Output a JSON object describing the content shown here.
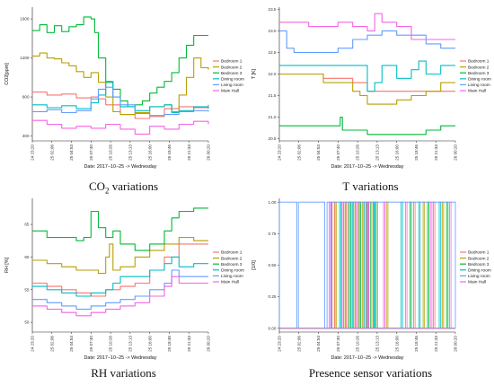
{
  "series_names": [
    "Bedroom 1",
    "Bedroom 2",
    "Bedroom 3",
    "Dining room",
    "Living room",
    "Main Hall"
  ],
  "colors": [
    "#f8766d",
    "#b79f00",
    "#00ba38",
    "#00bfc4",
    "#619cff",
    "#f564e3"
  ],
  "time_ticks": [
    "24 23:20",
    "25 02:06",
    "25 04:53",
    "25 07:40",
    "25 10:26",
    "25 13:13",
    "25 16:00",
    "25 18:46",
    "25 21:33",
    "26 00:20"
  ],
  "captions": {
    "co2_main": "CO",
    "co2_sub": "2",
    "co2_rest": " variations",
    "t": "T variations",
    "rh": "RH variations",
    "pres": "Presence sensor variations"
  },
  "chart_data": [
    {
      "type": "line",
      "title": "",
      "xlabel": "Date: 2017−10−25 -> Wednesday",
      "ylabel": "CO2[ppm]",
      "ylim": [
        350,
        1720
      ],
      "yticks": [
        400,
        800,
        1200,
        1600
      ],
      "series": [
        {
          "name": "Bedroom 1",
          "t": [
            0,
            2,
            4,
            6,
            8,
            9,
            10,
            12,
            14,
            16,
            18,
            20,
            22,
            24
          ],
          "values": [
            850,
            820,
            830,
            790,
            800,
            780,
            720,
            620,
            580,
            600,
            680,
            700,
            690,
            720
          ]
        },
        {
          "name": "Bedroom 2",
          "t": [
            0,
            1,
            2,
            3,
            4,
            5,
            6,
            7,
            8,
            9,
            10,
            11,
            12,
            14,
            16,
            18,
            19,
            20,
            21,
            22,
            23,
            24
          ],
          "values": [
            1220,
            1250,
            1200,
            1190,
            1150,
            1120,
            1060,
            1000,
            1050,
            950,
            800,
            650,
            620,
            640,
            700,
            720,
            650,
            820,
            1000,
            1200,
            1100,
            1080
          ]
        },
        {
          "name": "Bedroom 3",
          "t": [
            0,
            1,
            2,
            3,
            4,
            5,
            6,
            7,
            8,
            8.5,
            9,
            10,
            11,
            12,
            13,
            14,
            15,
            16,
            17,
            18,
            19,
            20,
            21,
            22,
            23,
            24
          ],
          "values": [
            1480,
            1540,
            1460,
            1530,
            1470,
            1520,
            1540,
            1620,
            1600,
            1460,
            1200,
            950,
            880,
            760,
            700,
            720,
            760,
            840,
            900,
            960,
            1050,
            1200,
            1330,
            1430,
            1430,
            1430
          ]
        },
        {
          "name": "Dining room",
          "t": [
            0,
            2,
            4,
            6,
            8,
            9,
            10,
            11,
            12,
            14,
            16,
            18,
            19,
            20,
            22,
            24
          ],
          "values": [
            720,
            690,
            710,
            680,
            740,
            820,
            960,
            800,
            700,
            660,
            700,
            720,
            640,
            660,
            700,
            680
          ]
        },
        {
          "name": "Living room",
          "t": [
            0,
            2,
            4,
            6,
            8,
            9,
            10,
            11,
            12,
            14,
            16,
            18,
            20,
            22,
            24
          ],
          "values": [
            650,
            670,
            640,
            660,
            780,
            880,
            900,
            800,
            720,
            630,
            610,
            620,
            650,
            660,
            650
          ]
        },
        {
          "name": "Main Hall",
          "t": [
            0,
            2,
            4,
            6,
            8,
            10,
            12,
            14,
            16,
            18,
            20,
            22,
            24
          ],
          "values": [
            560,
            520,
            480,
            500,
            480,
            520,
            470,
            420,
            500,
            470,
            520,
            550,
            520
          ]
        }
      ]
    },
    {
      "type": "line",
      "title": "",
      "xlabel": "Date: 2017−10−25 -> Wednesday",
      "ylabel": "T [K]",
      "ylim": [
        20.45,
        23.55
      ],
      "yticks": [
        20.5,
        21.0,
        21.5,
        22.0,
        22.5,
        23.0,
        23.5
      ],
      "series": [
        {
          "name": "Bedroom 1",
          "t": [
            0,
            2,
            4,
            6,
            8,
            10,
            11,
            12,
            14,
            16,
            18,
            20,
            22,
            24
          ],
          "values": [
            22.0,
            22.0,
            22.0,
            21.9,
            21.9,
            21.8,
            21.8,
            21.6,
            21.6,
            21.6,
            21.6,
            21.6,
            21.6,
            21.6
          ]
        },
        {
          "name": "Bedroom 2",
          "t": [
            0,
            2,
            4,
            6,
            8,
            9,
            10,
            11,
            12,
            14,
            16,
            18,
            20,
            22,
            24
          ],
          "values": [
            22.0,
            22.0,
            22.0,
            21.8,
            21.8,
            21.8,
            21.6,
            21.5,
            21.3,
            21.3,
            21.4,
            21.5,
            21.6,
            21.8,
            21.8
          ]
        },
        {
          "name": "Bedroom 3",
          "t": [
            0,
            2,
            4,
            6,
            8,
            8.3,
            8.6,
            9,
            12,
            15,
            18,
            20,
            22,
            24
          ],
          "values": [
            20.8,
            20.8,
            20.8,
            20.8,
            20.8,
            21.0,
            20.7,
            20.7,
            20.6,
            20.6,
            20.6,
            20.7,
            20.8,
            20.8
          ]
        },
        {
          "name": "Dining room",
          "t": [
            0,
            2,
            4,
            6,
            8,
            10,
            12,
            13,
            14,
            16,
            18,
            19,
            20,
            22,
            24
          ],
          "values": [
            22.2,
            22.2,
            22.2,
            22.2,
            22.2,
            22.2,
            21.6,
            21.8,
            22.2,
            21.9,
            22.1,
            22.3,
            22.0,
            22.2,
            22.2
          ]
        },
        {
          "name": "Living room",
          "t": [
            0,
            1,
            2,
            4,
            6,
            8,
            10,
            12,
            14,
            16,
            18,
            20,
            22,
            24
          ],
          "values": [
            23.0,
            22.6,
            22.5,
            22.5,
            22.5,
            22.6,
            22.8,
            22.9,
            23.0,
            22.9,
            22.9,
            22.7,
            22.6,
            22.6
          ]
        },
        {
          "name": "Main Hall",
          "t": [
            0,
            2,
            4,
            6,
            8,
            10,
            12,
            13,
            14,
            16,
            18,
            20,
            22,
            24
          ],
          "values": [
            23.2,
            23.2,
            23.1,
            23.1,
            23.2,
            23.1,
            23.0,
            23.4,
            23.2,
            23.1,
            22.8,
            22.8,
            22.8,
            22.8
          ]
        }
      ]
    },
    {
      "type": "line",
      "title": "",
      "xlabel": "Date: 2017−10−25 -> Wednesday",
      "ylabel": "RH [%]",
      "ylim": [
        48.5,
        69
      ],
      "yticks": [
        50,
        55,
        60,
        65
      ],
      "series": [
        {
          "name": "Bedroom 1",
          "t": [
            0,
            2,
            4,
            6,
            8,
            10,
            12,
            14,
            16,
            18,
            20,
            22,
            24
          ],
          "values": [
            56,
            55.5,
            55,
            54.5,
            54,
            55,
            55.5,
            56,
            58,
            60,
            62,
            62,
            62
          ]
        },
        {
          "name": "Bedroom 2",
          "t": [
            0,
            2,
            4,
            6,
            8,
            9,
            10,
            10.5,
            11,
            12,
            14,
            16,
            18,
            20,
            22,
            24
          ],
          "values": [
            59.5,
            59,
            58.5,
            58,
            58,
            57.5,
            60,
            62,
            58,
            58.5,
            60,
            61,
            62,
            63,
            62.5,
            62.5
          ]
        },
        {
          "name": "Bedroom 3",
          "t": [
            0,
            2,
            4,
            6,
            7,
            8,
            9,
            10,
            11,
            12,
            14,
            16,
            18,
            19,
            20,
            22,
            24
          ],
          "values": [
            64,
            63,
            63,
            62.5,
            63,
            67,
            64.5,
            63,
            64,
            62,
            61,
            62,
            64,
            66,
            67,
            67.5,
            67.5
          ]
        },
        {
          "name": "Dining room",
          "t": [
            0,
            2,
            4,
            6,
            8,
            10,
            11,
            12,
            14,
            16,
            18,
            19,
            20,
            22,
            24
          ],
          "values": [
            55.5,
            55,
            54.5,
            54,
            54.5,
            55,
            56,
            57,
            57,
            58,
            59,
            60,
            58.5,
            59,
            59
          ]
        },
        {
          "name": "Living room",
          "t": [
            0,
            2,
            4,
            6,
            8,
            10,
            12,
            14,
            16,
            18,
            19,
            20,
            22,
            24
          ],
          "values": [
            53.5,
            53,
            52.5,
            52,
            52.5,
            53,
            53.5,
            54,
            55,
            56,
            58,
            57,
            57,
            57
          ]
        },
        {
          "name": "Main Hall",
          "t": [
            0,
            2,
            4,
            6,
            8,
            10,
            12,
            14,
            16,
            18,
            19,
            20,
            22,
            24
          ],
          "values": [
            52.5,
            52,
            51.5,
            51,
            51.5,
            52,
            52.5,
            53,
            54,
            55.5,
            57,
            56,
            56,
            56
          ]
        }
      ]
    },
    {
      "type": "line",
      "title": "",
      "xlabel": "Date: 2017−10−25 -> Wednesday",
      "ylabel": "[1/0]",
      "ylim": [
        -0.03,
        1.03
      ],
      "yticks": [
        0.0,
        0.25,
        0.5,
        0.75,
        1.0
      ],
      "pulses": [
        {
          "name": "Bedroom 1",
          "intervals": [
            [
              7.2,
              7.5
            ],
            [
              9.1,
              9.3
            ],
            [
              10.6,
              10.8
            ],
            [
              11.9,
              12.1
            ],
            [
              13.2,
              13.4
            ],
            [
              18.3,
              18.5
            ],
            [
              21.0,
              21.2
            ]
          ]
        },
        {
          "name": "Bedroom 2",
          "intervals": [
            [
              7.6,
              7.8
            ],
            [
              8.8,
              9.0
            ],
            [
              10.1,
              10.3
            ],
            [
              11.3,
              11.5
            ],
            [
              12.6,
              12.8
            ],
            [
              14.6,
              14.8
            ],
            [
              19.6,
              19.8
            ],
            [
              22.2,
              22.4
            ]
          ]
        },
        {
          "name": "Bedroom 3",
          "intervals": [
            [
              9.5,
              9.7
            ],
            [
              10.9,
              11.1
            ],
            [
              12.2,
              12.4
            ],
            [
              13.0,
              13.2
            ],
            [
              17.8,
              18.0
            ],
            [
              20.2,
              20.4
            ],
            [
              22.8,
              23.0
            ]
          ]
        },
        {
          "name": "Dining room",
          "intervals": [
            [
              8.2,
              8.4
            ],
            [
              9.8,
              10.0
            ],
            [
              11.6,
              11.8
            ],
            [
              12.9,
              13.0
            ],
            [
              16.6,
              16.8
            ],
            [
              19.0,
              19.2
            ],
            [
              21.8,
              22.0
            ]
          ]
        },
        {
          "name": "Living room",
          "intervals": [
            [
              0.0,
              2.4
            ],
            [
              2.6,
              6.2
            ],
            [
              6.5,
              7.0
            ],
            [
              7.1,
              24.0
            ]
          ]
        },
        {
          "name": "Main Hall",
          "intervals": [
            [
              6.8,
              7.0
            ],
            [
              8.5,
              8.7
            ],
            [
              10.4,
              10.6
            ],
            [
              12.0,
              12.2
            ],
            [
              14.2,
              14.4
            ],
            [
              17.2,
              17.4
            ],
            [
              20.6,
              20.8
            ],
            [
              23.2,
              23.4
            ]
          ]
        }
      ]
    }
  ]
}
